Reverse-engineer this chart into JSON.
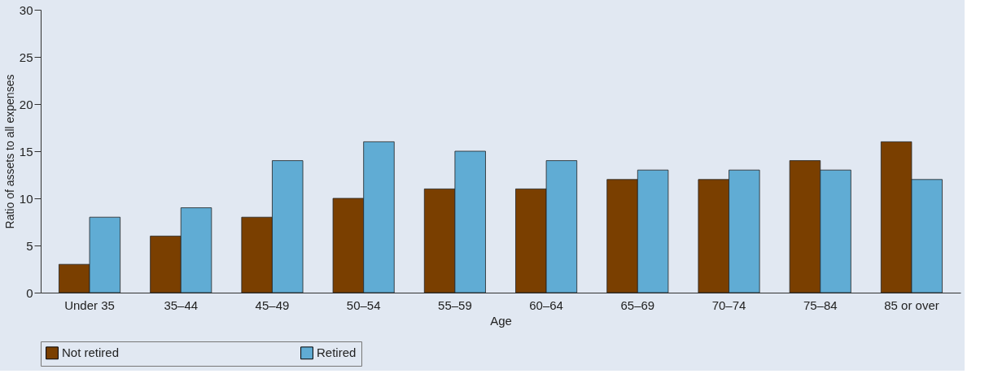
{
  "chart_data": {
    "type": "bar",
    "xlabel": "Age",
    "ylabel": "Ratio of assets to all expenses",
    "categories": [
      "Under 35",
      "35–44",
      "45–49",
      "50–54",
      "55–59",
      "60–64",
      "65–69",
      "70–74",
      "75–84",
      "85 or over"
    ],
    "series": [
      {
        "name": "Not retired",
        "color": "#7a3f00",
        "values": [
          3,
          6,
          8,
          10,
          11,
          11,
          12,
          12,
          14,
          16
        ]
      },
      {
        "name": "Retired",
        "color": "#60acd4",
        "values": [
          8,
          9,
          14,
          16,
          15,
          14,
          13,
          13,
          13,
          12
        ]
      }
    ],
    "ylim": [
      0,
      30
    ],
    "yticks": [
      0,
      5,
      10,
      15,
      20,
      25,
      30
    ],
    "grid": false,
    "legend": "bottom"
  }
}
